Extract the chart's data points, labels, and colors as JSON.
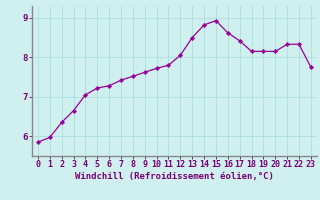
{
  "x": [
    0,
    1,
    2,
    3,
    4,
    5,
    6,
    7,
    8,
    9,
    10,
    11,
    12,
    13,
    14,
    15,
    16,
    17,
    18,
    19,
    20,
    21,
    22,
    23
  ],
  "y": [
    5.85,
    5.97,
    6.35,
    6.65,
    7.05,
    7.22,
    7.28,
    7.42,
    7.52,
    7.62,
    7.72,
    7.8,
    8.05,
    8.5,
    8.82,
    8.93,
    8.62,
    8.42,
    8.15,
    8.15,
    8.15,
    8.33,
    8.33,
    7.75
  ],
  "line_color": "#990099",
  "marker_color": "#990099",
  "bg_color": "#cff0ee",
  "grid_color": "#aadddd",
  "axis_color": "#770077",
  "spine_color": "#888888",
  "xlabel": "Windchill (Refroidissement éolien,°C)",
  "xlim": [
    -0.5,
    23.5
  ],
  "ylim": [
    5.5,
    9.3
  ],
  "yticks": [
    6,
    7,
    8,
    9
  ],
  "xticks": [
    0,
    1,
    2,
    3,
    4,
    5,
    6,
    7,
    8,
    9,
    10,
    11,
    12,
    13,
    14,
    15,
    16,
    17,
    18,
    19,
    20,
    21,
    22,
    23
  ],
  "xlabel_fontsize": 6.5,
  "tick_fontsize": 6,
  "marker_size": 2.2,
  "linewidth": 0.9
}
